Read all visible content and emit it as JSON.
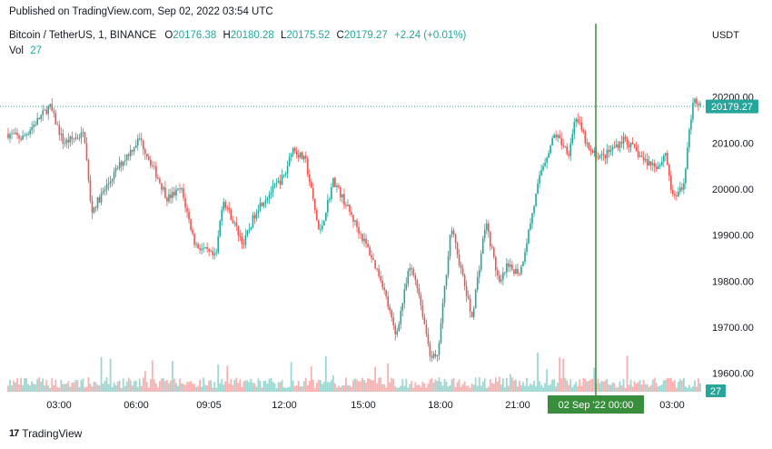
{
  "header": {
    "published": "Published on TradingView.com, Sep 02, 2022 03:54 UTC"
  },
  "legend": {
    "symbol": "Bitcoin / TetherUS, 1, BINANCE",
    "o_label": "O",
    "o": "20176.38",
    "h_label": "H",
    "h": "20180.28",
    "l_label": "L",
    "l": "20175.52",
    "c_label": "C",
    "c": "20179.27",
    "change": "+2.24 (+0.01%)",
    "vol_label": "Vol",
    "vol": "27"
  },
  "footer": {
    "brand": "TradingView",
    "logo": "17"
  },
  "colors": {
    "up": "#26a69a",
    "down": "#ef5350",
    "crosshair": "#388e3c",
    "text": "#131722"
  },
  "chart_data": {
    "type": "candlestick",
    "currency_label": "USDT",
    "y_ticks": [
      "20200.00",
      "20100.00",
      "20000.00",
      "19900.00",
      "19800.00",
      "19700.00",
      "19600.00"
    ],
    "y_tick_values": [
      20200,
      20100,
      20000,
      19900,
      19800,
      19700,
      19600
    ],
    "ylim": [
      19560,
      20300
    ],
    "x_ticks": [
      "03:00",
      "06:00",
      "09:05",
      "12:00",
      "15:00",
      "18:00",
      "21:00",
      "00:00",
      "03:00"
    ],
    "crosshair_label": "02 Sep '22  00:00",
    "last_price": "20179.27",
    "last_price_value": 20179.27,
    "volume_last": "27",
    "path_x": [
      0,
      0.02,
      0.06,
      0.08,
      0.11,
      0.12,
      0.16,
      0.19,
      0.23,
      0.25,
      0.27,
      0.3,
      0.31,
      0.34,
      0.36,
      0.4,
      0.41,
      0.43,
      0.45,
      0.47,
      0.49,
      0.52,
      0.54,
      0.56,
      0.58,
      0.59,
      0.61,
      0.62,
      0.64,
      0.67,
      0.69,
      0.71,
      0.72,
      0.74,
      0.77,
      0.79,
      0.81,
      0.82,
      0.84,
      0.86,
      0.89,
      0.92,
      0.94,
      0.95,
      0.96,
      0.975,
      0.99,
      1.0
    ],
    "path_y": [
      20120,
      20110,
      20180,
      20100,
      20120,
      19950,
      20050,
      20110,
      19980,
      20000,
      19880,
      19850,
      19980,
      19880,
      19960,
      20030,
      20090,
      20060,
      19900,
      20020,
      19960,
      19870,
      19800,
      19680,
      19830,
      19800,
      19640,
      19630,
      19920,
      19720,
      19930,
      19790,
      19830,
      19820,
      20040,
      20120,
      20080,
      20160,
      20080,
      20070,
      20110,
      20060,
      20050,
      20080,
      19980,
      20000,
      20200,
      20180
    ],
    "candles": 380,
    "volume_max": 60
  }
}
